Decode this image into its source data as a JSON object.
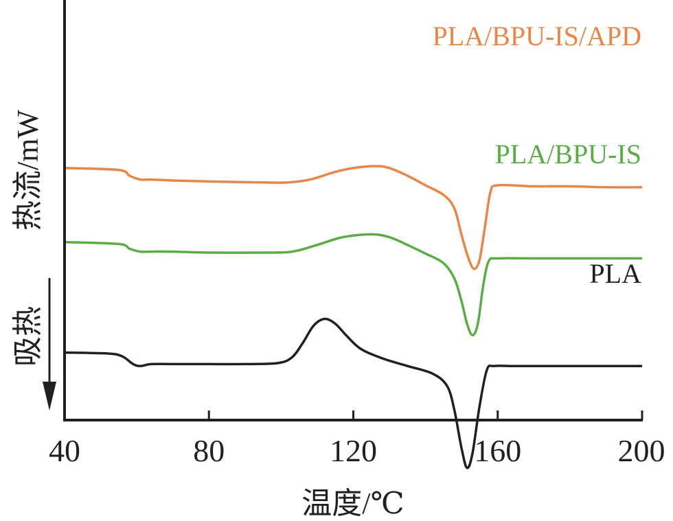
{
  "chart_data": {
    "type": "line",
    "title": "",
    "xlabel": "温度/℃",
    "ylabel": "热流/mW",
    "endo_label": "吸热",
    "xlim": [
      40,
      200
    ],
    "x_ticks": [
      "40",
      "80",
      "120",
      "160",
      "200"
    ],
    "grid": false,
    "legend": "labels placed next to each curve (right side)",
    "series": [
      {
        "name": "PLA/BPU-IS/APD",
        "color": "#e8864a",
        "offset": 0.88,
        "points": [
          [
            40,
            0.0
          ],
          [
            55,
            -0.02
          ],
          [
            58,
            -0.08
          ],
          [
            61,
            -0.12
          ],
          [
            64,
            -0.12
          ],
          [
            70,
            -0.13
          ],
          [
            80,
            -0.14
          ],
          [
            95,
            -0.15
          ],
          [
            102,
            -0.15
          ],
          [
            108,
            -0.12
          ],
          [
            115,
            -0.04
          ],
          [
            120,
            0.0
          ],
          [
            126,
            0.02
          ],
          [
            130,
            0.0
          ],
          [
            135,
            -0.08
          ],
          [
            140,
            -0.18
          ],
          [
            145,
            -0.28
          ],
          [
            148,
            -0.42
          ],
          [
            150,
            -0.7
          ],
          [
            152,
            -0.95
          ],
          [
            153.5,
            -1.05
          ],
          [
            155,
            -0.95
          ],
          [
            156.5,
            -0.6
          ],
          [
            158,
            -0.25
          ],
          [
            160,
            -0.18
          ],
          [
            170,
            -0.19
          ],
          [
            180,
            -0.19
          ],
          [
            190,
            -0.2
          ],
          [
            200,
            -0.2
          ]
        ]
      },
      {
        "name": "PLA/BPU-IS",
        "color": "#5aac46",
        "offset": 0.11,
        "points": [
          [
            40,
            0.0
          ],
          [
            55,
            -0.02
          ],
          [
            58,
            -0.07
          ],
          [
            61,
            -0.1
          ],
          [
            64,
            -0.1
          ],
          [
            70,
            -0.1
          ],
          [
            80,
            -0.11
          ],
          [
            95,
            -0.11
          ],
          [
            103,
            -0.1
          ],
          [
            110,
            -0.03
          ],
          [
            117,
            0.05
          ],
          [
            125,
            0.08
          ],
          [
            130,
            0.05
          ],
          [
            135,
            -0.03
          ],
          [
            140,
            -0.12
          ],
          [
            145,
            -0.22
          ],
          [
            148,
            -0.38
          ],
          [
            150,
            -0.62
          ],
          [
            151.5,
            -0.85
          ],
          [
            153,
            -0.97
          ],
          [
            154.5,
            -0.85
          ],
          [
            156,
            -0.45
          ],
          [
            157.5,
            -0.2
          ],
          [
            160,
            -0.17
          ],
          [
            170,
            -0.17
          ],
          [
            180,
            -0.17
          ],
          [
            200,
            -0.17
          ]
        ]
      },
      {
        "name": "PLA",
        "color": "#231f20",
        "offset": -1.04,
        "points": [
          [
            40,
            0.0
          ],
          [
            52,
            -0.01
          ],
          [
            56,
            -0.04
          ],
          [
            59,
            -0.12
          ],
          [
            61,
            -0.14
          ],
          [
            64,
            -0.12
          ],
          [
            70,
            -0.12
          ],
          [
            80,
            -0.12
          ],
          [
            90,
            -0.12
          ],
          [
            99,
            -0.11
          ],
          [
            103,
            -0.05
          ],
          [
            106,
            0.1
          ],
          [
            109,
            0.28
          ],
          [
            112,
            0.35
          ],
          [
            115,
            0.3
          ],
          [
            118,
            0.18
          ],
          [
            122,
            0.04
          ],
          [
            128,
            -0.06
          ],
          [
            135,
            -0.14
          ],
          [
            142,
            -0.22
          ],
          [
            146,
            -0.35
          ],
          [
            148,
            -0.6
          ],
          [
            150,
            -1.0
          ],
          [
            151.5,
            -1.2
          ],
          [
            153,
            -1.05
          ],
          [
            155,
            -0.55
          ],
          [
            157,
            -0.18
          ],
          [
            159,
            -0.14
          ],
          [
            165,
            -0.14
          ],
          [
            180,
            -0.14
          ],
          [
            200,
            -0.14
          ]
        ]
      }
    ]
  }
}
